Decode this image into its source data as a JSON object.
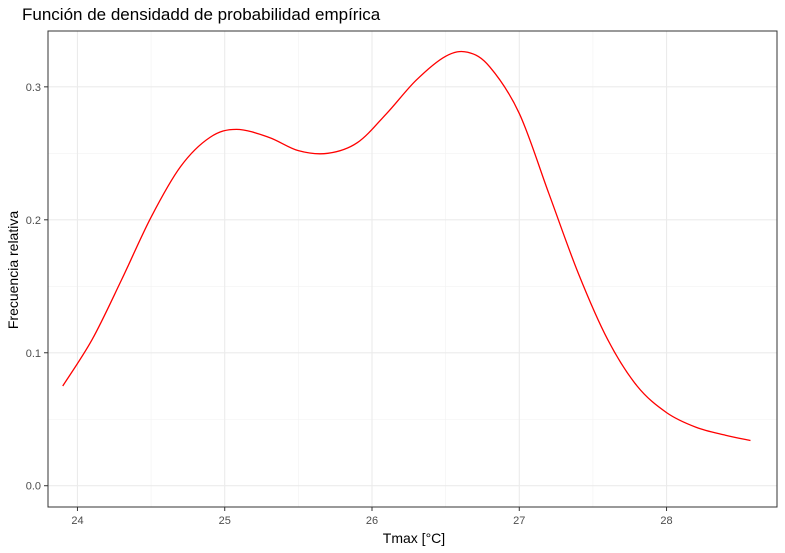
{
  "chart_data": {
    "type": "line",
    "title": "Función de densidadd de probabilidad empírica",
    "xlabel": "Tmax [°C]",
    "ylabel": "Frecuencia relativa",
    "xlim": [
      23.8,
      28.75
    ],
    "ylim": [
      -0.016,
      0.342
    ],
    "xticks": [
      24,
      25,
      26,
      27,
      28
    ],
    "yticks": [
      0.0,
      0.1,
      0.2,
      0.3
    ],
    "xtick_labels": [
      "24",
      "25",
      "26",
      "27",
      "28"
    ],
    "ytick_labels": [
      "0.0",
      "0.1",
      "0.2",
      "0.3"
    ],
    "grid": true,
    "legend": "none",
    "series": [
      {
        "color": "#ff0000",
        "x": [
          23.9,
          24.1,
          24.3,
          24.5,
          24.7,
          24.9,
          25.08,
          25.3,
          25.5,
          25.7,
          25.9,
          26.1,
          26.3,
          26.5,
          26.65,
          26.8,
          27.0,
          27.2,
          27.4,
          27.6,
          27.8,
          28.0,
          28.2,
          28.4,
          28.57
        ],
        "y": [
          0.075,
          0.11,
          0.155,
          0.202,
          0.24,
          0.262,
          0.268,
          0.262,
          0.252,
          0.25,
          0.258,
          0.28,
          0.305,
          0.323,
          0.326,
          0.315,
          0.28,
          0.22,
          0.16,
          0.11,
          0.075,
          0.055,
          0.044,
          0.038,
          0.034
        ]
      }
    ]
  }
}
